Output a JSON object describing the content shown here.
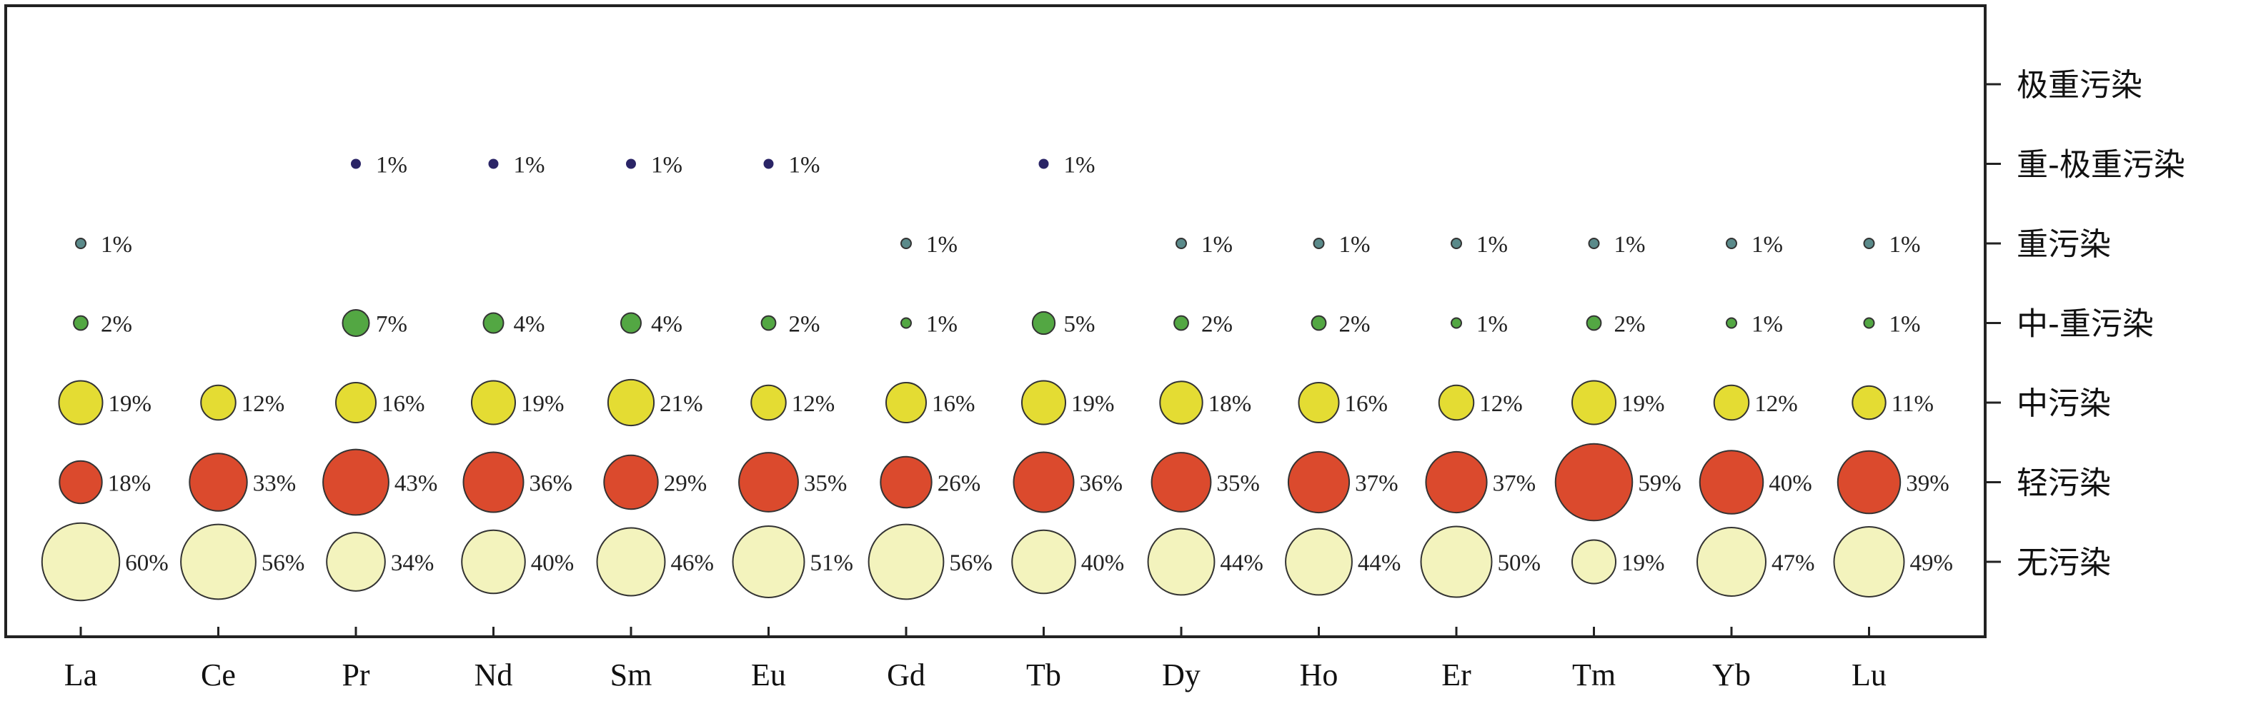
{
  "chart_data": {
    "type": "bubble",
    "x_categories": [
      "La",
      "Ce",
      "Pr",
      "Nd",
      "Sm",
      "Eu",
      "Gd",
      "Tb",
      "Dy",
      "Ho",
      "Er",
      "Tm",
      "Yb",
      "Lu"
    ],
    "y_categories": [
      "无污染",
      "轻污染",
      "中污染",
      "中-重污染",
      "重污染",
      "重-极重污染",
      "极重污染"
    ],
    "y_axis_position": "right",
    "grid": false,
    "colors": {
      "无污染": "#f3f3bd",
      "轻污染": "#db4a2d",
      "中污染": "#e4dc33",
      "中-重污染": "#53a743",
      "重污染": "#5a8a8a",
      "重-极重污染": "#2a2466"
    },
    "series": [
      {
        "name": "无污染",
        "values": [
          60,
          56,
          34,
          40,
          46,
          51,
          56,
          40,
          44,
          44,
          50,
          19,
          47,
          49
        ]
      },
      {
        "name": "轻污染",
        "values": [
          18,
          33,
          43,
          36,
          29,
          35,
          26,
          36,
          35,
          37,
          37,
          59,
          40,
          39
        ]
      },
      {
        "name": "中污染",
        "values": [
          19,
          12,
          16,
          19,
          21,
          12,
          16,
          19,
          18,
          16,
          12,
          19,
          12,
          11
        ]
      },
      {
        "name": "中-重污染",
        "values": [
          2,
          null,
          7,
          4,
          4,
          2,
          1,
          5,
          2,
          2,
          1,
          2,
          1,
          1
        ]
      },
      {
        "name": "重污染",
        "values": [
          1,
          null,
          null,
          null,
          null,
          null,
          1,
          null,
          1,
          1,
          1,
          1,
          1,
          1
        ]
      },
      {
        "name": "重-极重污染",
        "values": [
          null,
          null,
          1,
          1,
          1,
          1,
          null,
          1,
          null,
          null,
          null,
          null,
          null,
          null
        ]
      },
      {
        "name": "极重污染",
        "values": [
          null,
          null,
          null,
          null,
          null,
          null,
          null,
          null,
          null,
          null,
          null,
          null,
          null,
          null
        ]
      }
    ],
    "value_suffix": "%"
  }
}
